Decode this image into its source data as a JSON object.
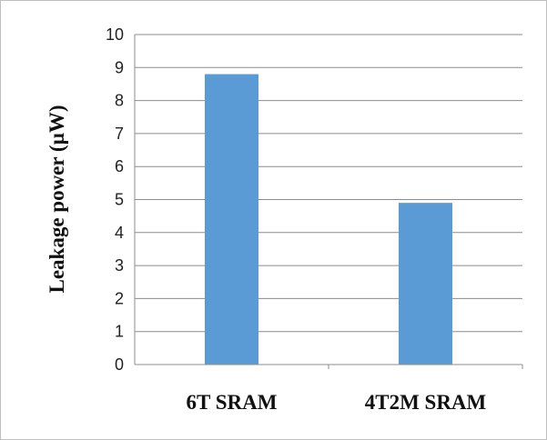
{
  "chart_data": {
    "type": "bar",
    "title": "",
    "xlabel": "",
    "ylabel": "Leakage power (µW)",
    "categories": [
      "6T SRAM",
      "4T2M SRAM"
    ],
    "series": [
      {
        "values": [
          8.8,
          4.9
        ]
      }
    ],
    "ylim": [
      0,
      10
    ],
    "yticks": [
      "0",
      "1",
      "2",
      "3",
      "4",
      "5",
      "6",
      "7",
      "8",
      "9",
      "10"
    ],
    "grid": true,
    "legend": "none",
    "colors": {
      "bar": "#5b9bd5",
      "grid": "#8c8c8c",
      "frame": "#bfbfbf"
    }
  }
}
